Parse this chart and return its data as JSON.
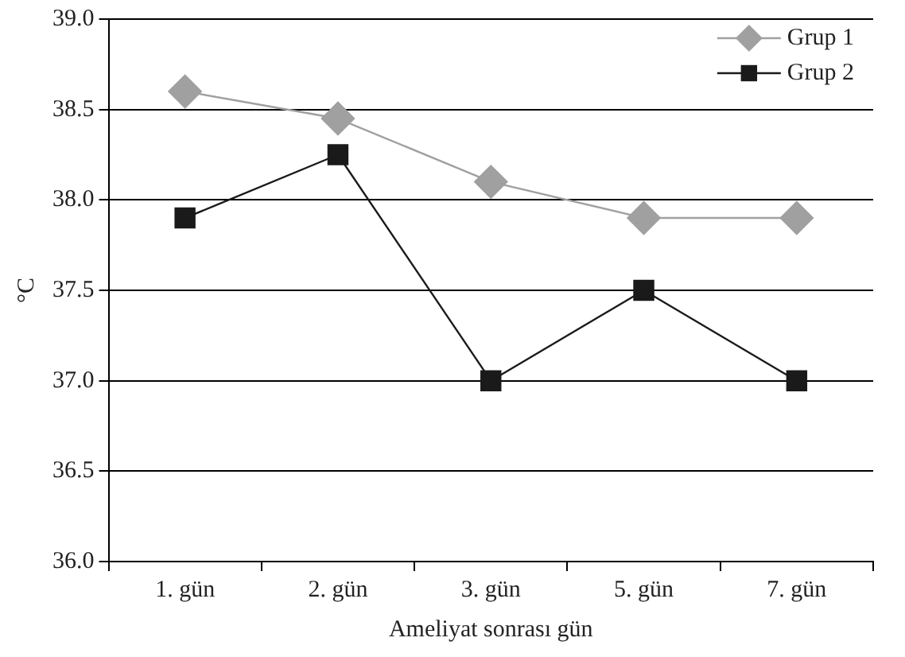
{
  "chart_data": {
    "type": "line",
    "xlabel": "Ameliyat sonrası gün",
    "ylabel": "°C",
    "categories": [
      "1. gün",
      "2. gün",
      "3. gün",
      "5. gün",
      "7. gün"
    ],
    "series": [
      {
        "name": "Grup 1",
        "color": "#a0a0a0",
        "marker": "diamond",
        "values": [
          38.6,
          38.45,
          38.1,
          37.9,
          37.9
        ]
      },
      {
        "name": "Grup 2",
        "color": "#1a1a1a",
        "marker": "square",
        "values": [
          37.9,
          38.25,
          37.0,
          37.5,
          37.0
        ]
      }
    ],
    "ylim": [
      36.0,
      39.0
    ],
    "yticks": [
      {
        "value": 36,
        "label": "36.0"
      },
      {
        "value": 36.5,
        "label": "36.5"
      },
      {
        "value": 37,
        "label": "37.0"
      },
      {
        "value": 37.5,
        "label": "37.5"
      },
      {
        "value": 38,
        "label": "38.0"
      },
      {
        "value": 38.5,
        "label": "38.5"
      },
      {
        "value": 39,
        "label": "39.0"
      }
    ],
    "grid": "y",
    "legend": "top right"
  }
}
